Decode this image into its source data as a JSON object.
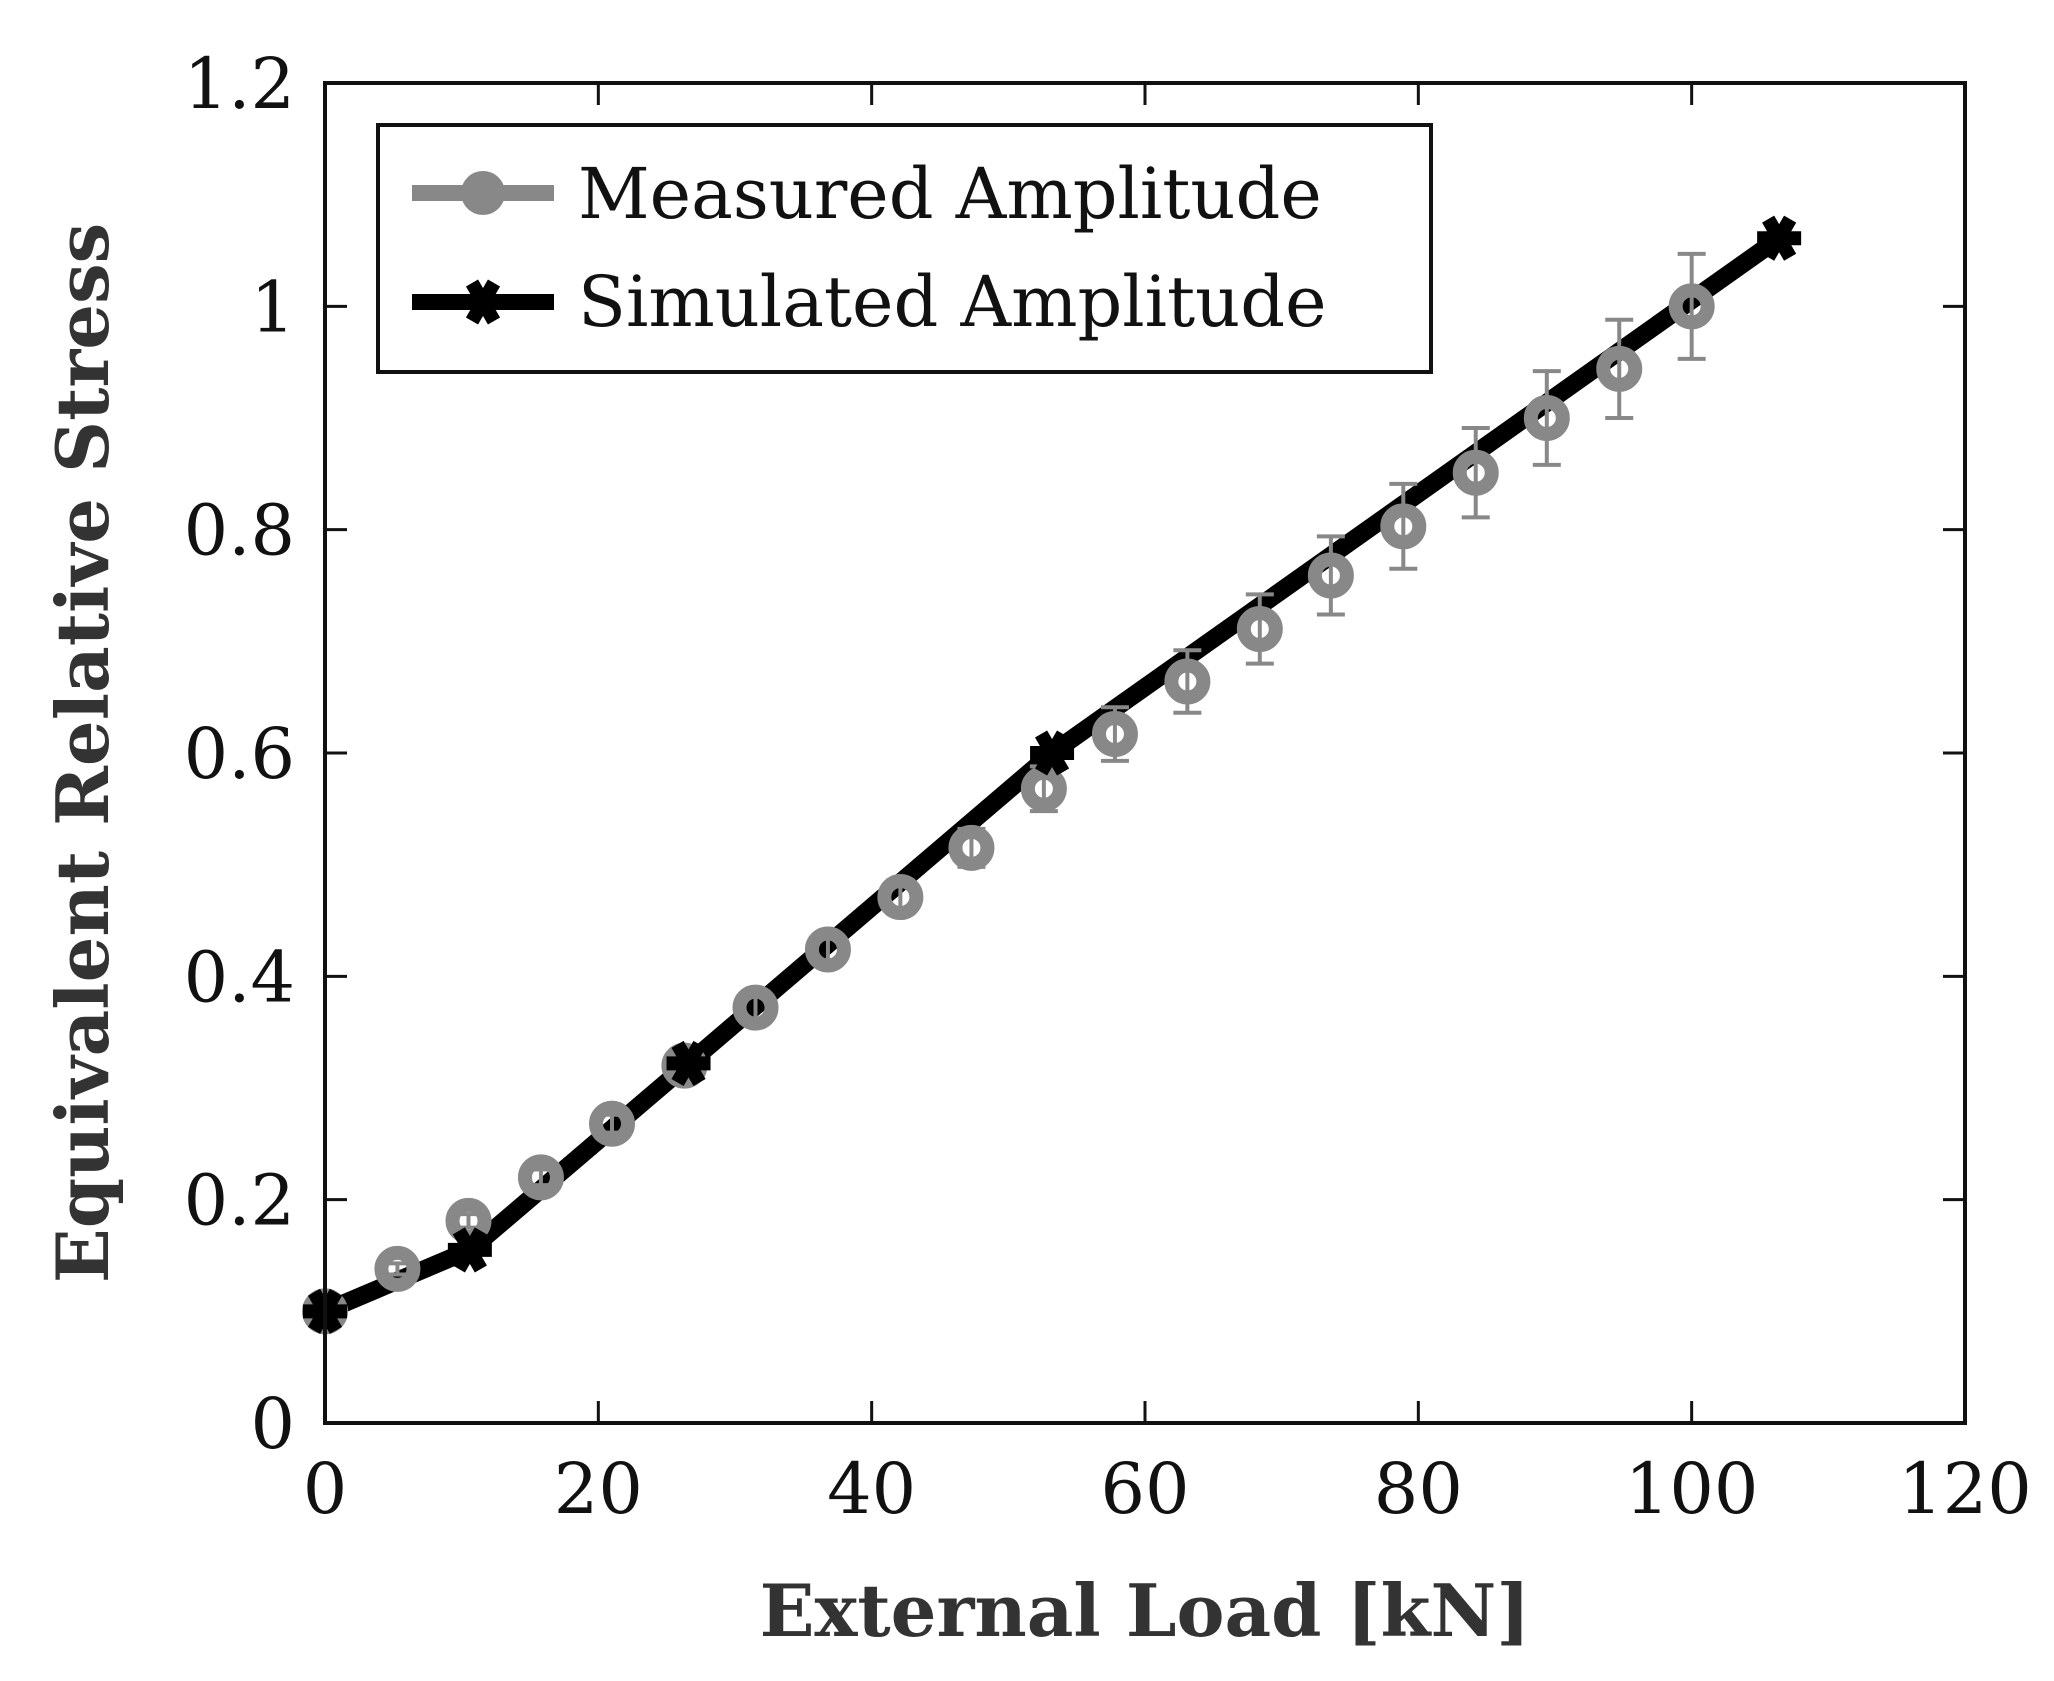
{
  "chart_data": {
    "type": "line",
    "title": "",
    "xlabel": "External Load [kN]",
    "ylabel": "Equivalent Relative Stress",
    "xlim": [
      0,
      120
    ],
    "ylim": [
      0,
      1.2
    ],
    "xticks": [
      0,
      20,
      40,
      60,
      80,
      100,
      120
    ],
    "yticks": [
      0,
      0.2,
      0.4,
      0.6,
      0.8,
      1,
      1.2
    ],
    "xtick_labels": [
      "0",
      "20",
      "40",
      "60",
      "80",
      "100",
      "120"
    ],
    "ytick_labels": [
      "0",
      "0.2",
      "0.4",
      "0.6",
      "0.8",
      "1",
      "1.2"
    ],
    "grid": false,
    "legend": "top-left",
    "series": [
      {
        "name": "Measured Amplitude",
        "color": "#888888",
        "marker": "circle",
        "x": [
          0,
          5.3,
          10.5,
          15.8,
          21.0,
          26.3,
          31.5,
          36.8,
          42.1,
          47.3,
          52.6,
          57.8,
          63.1,
          68.4,
          73.6,
          78.9,
          84.2,
          89.4,
          94.7,
          100
        ],
        "y": [
          0.1,
          0.138,
          0.181,
          0.22,
          0.268,
          0.32,
          0.372,
          0.424,
          0.471,
          0.515,
          0.568,
          0.617,
          0.664,
          0.711,
          0.759,
          0.803,
          0.851,
          0.9,
          0.944,
          1.0
        ],
        "error": [
          0.004,
          0.005,
          0.006,
          0.007,
          0.008,
          0.01,
          0.011,
          0.013,
          0.015,
          0.017,
          0.02,
          0.024,
          0.028,
          0.031,
          0.035,
          0.038,
          0.04,
          0.042,
          0.044,
          0.047
        ]
      },
      {
        "name": "Simulated Amplitude",
        "color": "#000000",
        "marker": "star",
        "x": [
          0,
          10.6,
          26.6,
          53.2,
          106.4
        ],
        "y": [
          0.1,
          0.155,
          0.322,
          0.6,
          1.061
        ]
      }
    ]
  }
}
